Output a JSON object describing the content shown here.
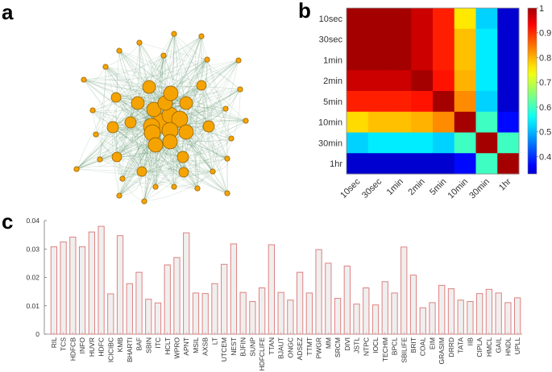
{
  "panels": {
    "a": "a",
    "b": "b",
    "c": "c"
  },
  "chart_data": [
    {
      "type": "network",
      "panel": "a",
      "title": "",
      "node_color": "#f5a300",
      "edge_color": "#4e8a5a",
      "description": "Dense network graph; larger central nodes, smaller peripheral nodes",
      "node_count": 50
    },
    {
      "type": "heatmap",
      "panel": "b",
      "rows": [
        "10sec",
        "30sec",
        "1min",
        "2min",
        "5min",
        "10min",
        "30min",
        "1hr"
      ],
      "cols": [
        "10sec",
        "30sec",
        "1min",
        "2min",
        "5min",
        "10min",
        "30min",
        "1hr"
      ],
      "values": [
        [
          1.0,
          1.0,
          1.0,
          0.97,
          0.91,
          0.76,
          0.52,
          0.33
        ],
        [
          1.0,
          1.0,
          1.0,
          0.97,
          0.91,
          0.79,
          0.54,
          0.33
        ],
        [
          1.0,
          1.0,
          1.0,
          0.97,
          0.91,
          0.79,
          0.54,
          0.33
        ],
        [
          0.97,
          0.97,
          0.97,
          1.0,
          0.92,
          0.8,
          0.54,
          0.33
        ],
        [
          0.91,
          0.91,
          0.91,
          0.92,
          1.0,
          0.83,
          0.52,
          0.33
        ],
        [
          0.77,
          0.79,
          0.79,
          0.8,
          0.83,
          1.0,
          0.6,
          0.37
        ],
        [
          0.52,
          0.54,
          0.54,
          0.54,
          0.52,
          0.6,
          1.0,
          0.6
        ],
        [
          0.33,
          0.33,
          0.33,
          0.33,
          0.33,
          0.37,
          0.6,
          1.0
        ]
      ],
      "colorbar": {
        "min": 0.33,
        "max": 1.0,
        "ticks": [
          "0.4",
          "0.5",
          "0.6",
          "0.7",
          "0.8",
          "0.9",
          "1"
        ],
        "tick_values": [
          0.4,
          0.5,
          0.6,
          0.7,
          0.8,
          0.9,
          1.0
        ],
        "colormap": "jet"
      }
    },
    {
      "type": "bar",
      "panel": "c",
      "title": "",
      "xlabel": "",
      "ylabel": "",
      "ylim": [
        0,
        0.04
      ],
      "yticks": [
        "0",
        "0.01",
        "0.02",
        "0.03",
        "0.04"
      ],
      "ytick_values": [
        0,
        0.01,
        0.02,
        0.03,
        0.04
      ],
      "bar_fill": "#efefef",
      "bar_edge": "#e08080",
      "categories": [
        "RIL",
        "TCS",
        "HDFCB",
        "INFO",
        "HUVR",
        "HDFC",
        "ICICIBC",
        "KMB",
        "BHARTI",
        "BAF",
        "SBIN",
        "ITC",
        "HCLT",
        "WPRO",
        "APNT",
        "MSIL",
        "AXSB",
        "LT",
        "UTCEM",
        "NEST",
        "BJFIN",
        "SUNP",
        "HDFCLIFE",
        "TTAN",
        "BJAUT",
        "ONGC",
        "ADSEZ",
        "TTMT",
        "PWGR",
        "MM",
        "SRCM",
        "DIVI",
        "JSTL",
        "NTPC",
        "IOCL",
        "TECHM",
        "BPCL",
        "SBILIFE",
        "BRIT",
        "COAL",
        "EIM",
        "GRASIM",
        "DRRD",
        "TATA",
        "IIB",
        "CIPLA",
        "HMCL",
        "GAIL",
        "HNDL",
        "UPLL"
      ],
      "values": [
        0.0308,
        0.0325,
        0.0342,
        0.0308,
        0.036,
        0.038,
        0.0142,
        0.0347,
        0.0178,
        0.0218,
        0.0123,
        0.011,
        0.0244,
        0.027,
        0.0357,
        0.0145,
        0.0143,
        0.0178,
        0.0246,
        0.0318,
        0.0147,
        0.0115,
        0.0163,
        0.0315,
        0.0147,
        0.012,
        0.0218,
        0.0145,
        0.0298,
        0.025,
        0.0126,
        0.024,
        0.0106,
        0.0163,
        0.0103,
        0.0185,
        0.0145,
        0.0307,
        0.0208,
        0.0093,
        0.0111,
        0.0172,
        0.016,
        0.012,
        0.0115,
        0.0143,
        0.0158,
        0.0145,
        0.0111,
        0.0128
      ]
    }
  ]
}
